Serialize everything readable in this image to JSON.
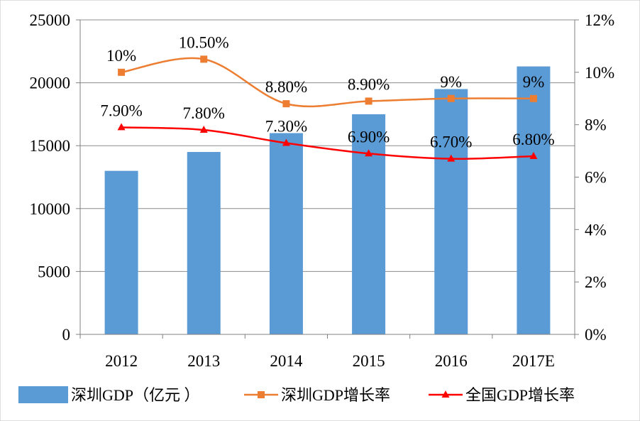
{
  "chart_data": {
    "type": "bar+line",
    "categories": [
      "2012",
      "2013",
      "2014",
      "2015",
      "2016",
      "2017E"
    ],
    "left_axis": {
      "min": 0,
      "max": 25000,
      "ticks": [
        "0",
        "5000",
        "10000",
        "15000",
        "20000",
        "25000"
      ]
    },
    "right_axis": {
      "min": 0,
      "max": 12,
      "ticks": [
        "0%",
        "2%",
        "4%",
        "6%",
        "8%",
        "10%",
        "12%"
      ]
    },
    "grid": true,
    "series": [
      {
        "name": "深圳GDP（亿元 ）",
        "kind": "bar",
        "axis": "left",
        "color": "#5B9BD5",
        "values": [
          13000,
          14500,
          16000,
          17500,
          19500,
          21300
        ]
      },
      {
        "name": "深圳GDP增长率",
        "kind": "line",
        "axis": "right",
        "color": "#ED7D31",
        "marker": "square",
        "values": [
          10,
          10.5,
          8.8,
          8.9,
          9,
          9
        ],
        "labels": [
          "10%",
          "10.50%",
          "8.80%",
          "8.90%",
          "9%",
          "9%"
        ]
      },
      {
        "name": "全国GDP增长率",
        "kind": "line",
        "axis": "right",
        "color": "#FF0000",
        "marker": "triangle",
        "values": [
          7.9,
          7.8,
          7.3,
          6.9,
          6.7,
          6.8
        ],
        "labels": [
          "7.90%",
          "7.80%",
          "7.30%",
          "6.90%",
          "6.70%",
          "6.80%"
        ]
      }
    ],
    "legend_position": "bottom"
  }
}
